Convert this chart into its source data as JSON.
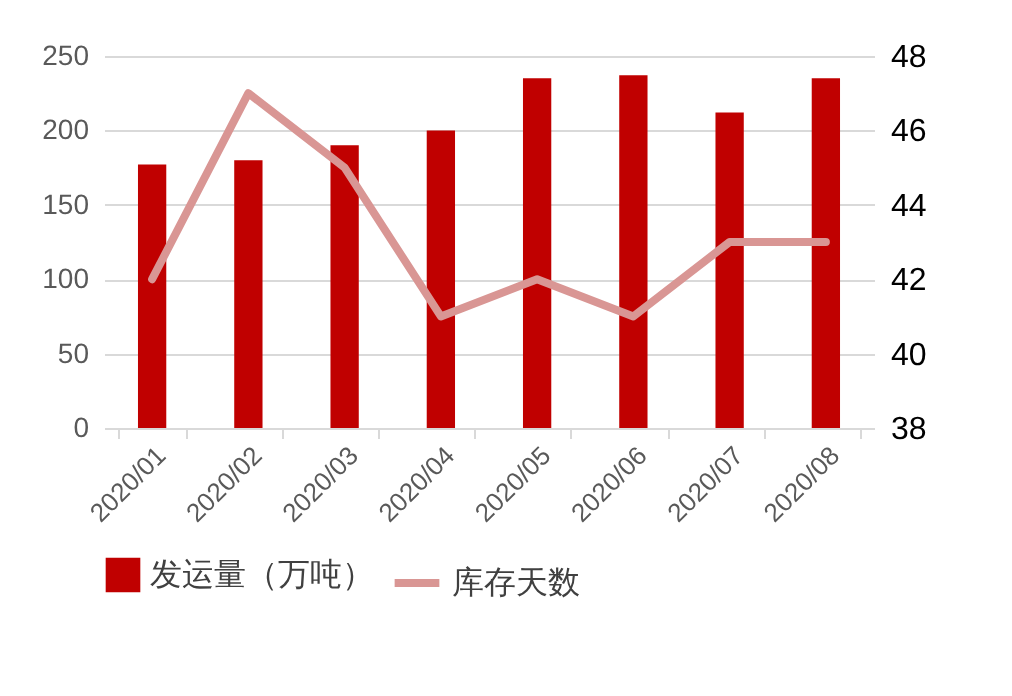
{
  "chart_data": {
    "type": "bar",
    "categories": [
      "2020/01",
      "2020/02",
      "2020/03",
      "2020/04",
      "2020/05",
      "2020/06",
      "2020/07",
      "2020/08"
    ],
    "series": [
      {
        "name": "发运量（万吨）",
        "color": "#c00000",
        "values": [
          177,
          180,
          190,
          200,
          235,
          237,
          212,
          235
        ]
      },
      {
        "name": "库存天数",
        "type": "line",
        "axis": "y2",
        "color": "#d99694",
        "values": [
          42,
          47,
          45,
          41,
          42,
          41,
          43,
          43
        ]
      }
    ],
    "ylim": [
      0,
      250
    ],
    "yticks": [
      0,
      50,
      100,
      150,
      200,
      250
    ],
    "y2lim": [
      38,
      48
    ],
    "y2ticks": [
      38,
      40,
      42,
      44,
      46,
      48
    ],
    "grid": "y",
    "legend": "bottom"
  }
}
